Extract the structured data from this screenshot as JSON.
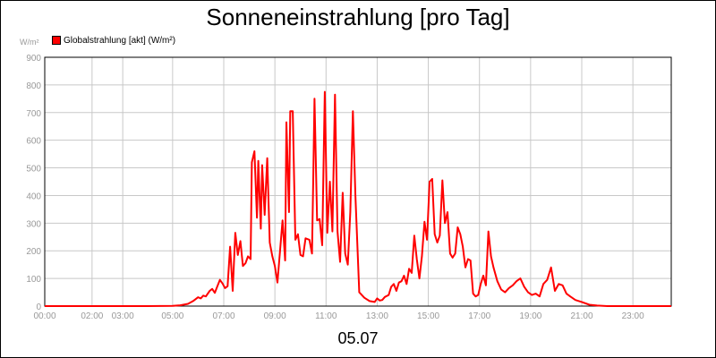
{
  "chart_data": {
    "type": "line",
    "title": "Sonneneinstrahlung [pro Tag]",
    "unit_label": "W/m²",
    "xlabel": "05.07",
    "ylabel": "W/m²",
    "ylim": [
      0,
      900
    ],
    "xlim": [
      0,
      24.5
    ],
    "grid": true,
    "legend_position": "top-left",
    "y_ticks": [
      "0",
      "100",
      "200",
      "300",
      "400",
      "500",
      "600",
      "700",
      "800",
      "900"
    ],
    "x_ticks": [
      "00:00",
      "02:00",
      "03:00",
      "05:00",
      "07:00",
      "09:00",
      "11:00",
      "13:00",
      "15:00",
      "17:00",
      "19:00",
      "21:00",
      "23:00"
    ],
    "x_tick_values": [
      0,
      1.85,
      3.05,
      5.0,
      7.0,
      9.0,
      11.0,
      13.0,
      15.0,
      17.0,
      19.0,
      21.0,
      23.0
    ],
    "colors": {
      "series": "#ff0000",
      "grid": "#c8c8c8",
      "axis": "#000000",
      "tick_text": "#999999"
    },
    "series": [
      {
        "name": "Globalstrahlung [akt] (W/m²)",
        "color": "#ff0000",
        "points": [
          [
            0,
            0
          ],
          [
            4.0,
            0
          ],
          [
            5.0,
            1
          ],
          [
            5.3,
            3
          ],
          [
            5.6,
            8
          ],
          [
            5.8,
            18
          ],
          [
            6.0,
            32
          ],
          [
            6.1,
            28
          ],
          [
            6.2,
            38
          ],
          [
            6.3,
            35
          ],
          [
            6.45,
            55
          ],
          [
            6.55,
            62
          ],
          [
            6.65,
            48
          ],
          [
            6.75,
            72
          ],
          [
            6.85,
            95
          ],
          [
            6.95,
            82
          ],
          [
            7.05,
            65
          ],
          [
            7.15,
            72
          ],
          [
            7.25,
            215
          ],
          [
            7.35,
            55
          ],
          [
            7.45,
            265
          ],
          [
            7.55,
            185
          ],
          [
            7.65,
            235
          ],
          [
            7.75,
            145
          ],
          [
            7.85,
            155
          ],
          [
            7.95,
            180
          ],
          [
            8.05,
            170
          ],
          [
            8.1,
            520
          ],
          [
            8.2,
            560
          ],
          [
            8.3,
            320
          ],
          [
            8.35,
            525
          ],
          [
            8.45,
            280
          ],
          [
            8.5,
            510
          ],
          [
            8.6,
            330
          ],
          [
            8.7,
            535
          ],
          [
            8.8,
            230
          ],
          [
            8.9,
            180
          ],
          [
            9.0,
            145
          ],
          [
            9.1,
            85
          ],
          [
            9.2,
            200
          ],
          [
            9.3,
            310
          ],
          [
            9.4,
            165
          ],
          [
            9.45,
            665
          ],
          [
            9.55,
            340
          ],
          [
            9.6,
            705
          ],
          [
            9.7,
            705
          ],
          [
            9.8,
            240
          ],
          [
            9.9,
            260
          ],
          [
            10.0,
            185
          ],
          [
            10.1,
            180
          ],
          [
            10.2,
            245
          ],
          [
            10.35,
            240
          ],
          [
            10.45,
            190
          ],
          [
            10.5,
            460
          ],
          [
            10.55,
            750
          ],
          [
            10.65,
            310
          ],
          [
            10.75,
            315
          ],
          [
            10.85,
            220
          ],
          [
            10.95,
            775
          ],
          [
            11.05,
            265
          ],
          [
            11.15,
            450
          ],
          [
            11.25,
            270
          ],
          [
            11.35,
            765
          ],
          [
            11.45,
            270
          ],
          [
            11.55,
            160
          ],
          [
            11.65,
            410
          ],
          [
            11.75,
            190
          ],
          [
            11.85,
            150
          ],
          [
            11.95,
            340
          ],
          [
            12.05,
            705
          ],
          [
            12.15,
            400
          ],
          [
            12.3,
            50
          ],
          [
            12.5,
            30
          ],
          [
            12.7,
            18
          ],
          [
            12.9,
            15
          ],
          [
            13.0,
            28
          ],
          [
            13.1,
            20
          ],
          [
            13.2,
            22
          ],
          [
            13.3,
            33
          ],
          [
            13.45,
            40
          ],
          [
            13.55,
            70
          ],
          [
            13.65,
            80
          ],
          [
            13.75,
            55
          ],
          [
            13.85,
            85
          ],
          [
            13.95,
            90
          ],
          [
            14.05,
            110
          ],
          [
            14.15,
            80
          ],
          [
            14.25,
            135
          ],
          [
            14.35,
            120
          ],
          [
            14.45,
            255
          ],
          [
            14.55,
            170
          ],
          [
            14.65,
            100
          ],
          [
            14.75,
            180
          ],
          [
            14.85,
            305
          ],
          [
            14.95,
            240
          ],
          [
            15.05,
            450
          ],
          [
            15.15,
            460
          ],
          [
            15.25,
            260
          ],
          [
            15.35,
            230
          ],
          [
            15.45,
            255
          ],
          [
            15.55,
            455
          ],
          [
            15.65,
            300
          ],
          [
            15.75,
            340
          ],
          [
            15.85,
            190
          ],
          [
            15.95,
            175
          ],
          [
            16.05,
            190
          ],
          [
            16.15,
            285
          ],
          [
            16.25,
            260
          ],
          [
            16.35,
            215
          ],
          [
            16.45,
            140
          ],
          [
            16.55,
            170
          ],
          [
            16.65,
            165
          ],
          [
            16.75,
            45
          ],
          [
            16.85,
            35
          ],
          [
            16.95,
            40
          ],
          [
            17.05,
            80
          ],
          [
            17.15,
            110
          ],
          [
            17.25,
            75
          ],
          [
            17.35,
            270
          ],
          [
            17.45,
            180
          ],
          [
            17.55,
            140
          ],
          [
            17.7,
            90
          ],
          [
            17.85,
            60
          ],
          [
            18.0,
            50
          ],
          [
            18.15,
            65
          ],
          [
            18.3,
            75
          ],
          [
            18.45,
            90
          ],
          [
            18.6,
            100
          ],
          [
            18.75,
            70
          ],
          [
            18.9,
            50
          ],
          [
            19.05,
            40
          ],
          [
            19.2,
            45
          ],
          [
            19.35,
            35
          ],
          [
            19.5,
            80
          ],
          [
            19.65,
            95
          ],
          [
            19.8,
            140
          ],
          [
            19.95,
            55
          ],
          [
            20.1,
            80
          ],
          [
            20.25,
            75
          ],
          [
            20.4,
            45
          ],
          [
            20.55,
            35
          ],
          [
            20.75,
            22
          ],
          [
            21.0,
            15
          ],
          [
            21.3,
            5
          ],
          [
            21.6,
            2
          ],
          [
            22.0,
            0
          ],
          [
            24.5,
            0
          ]
        ]
      }
    ]
  }
}
